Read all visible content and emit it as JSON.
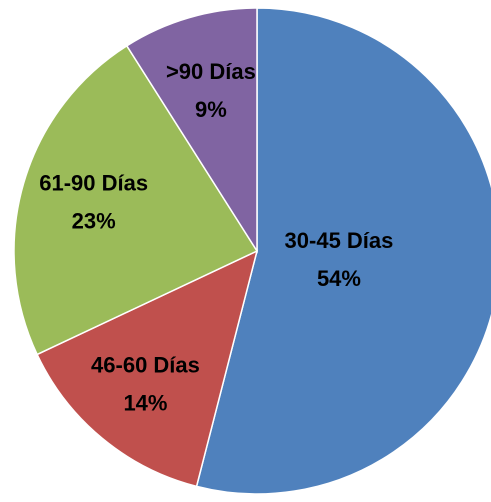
{
  "chart_data": {
    "type": "pie",
    "categories": [
      "30-45 Días",
      "46-60 Días",
      "61-90 Días",
      ">90 Días"
    ],
    "values": [
      54,
      14,
      23,
      9
    ],
    "value_labels": [
      "54%",
      "14%",
      "23%",
      "9%"
    ],
    "colors": [
      "#4f81bd",
      "#c0504d",
      "#9bbb59",
      "#8064a2"
    ]
  }
}
